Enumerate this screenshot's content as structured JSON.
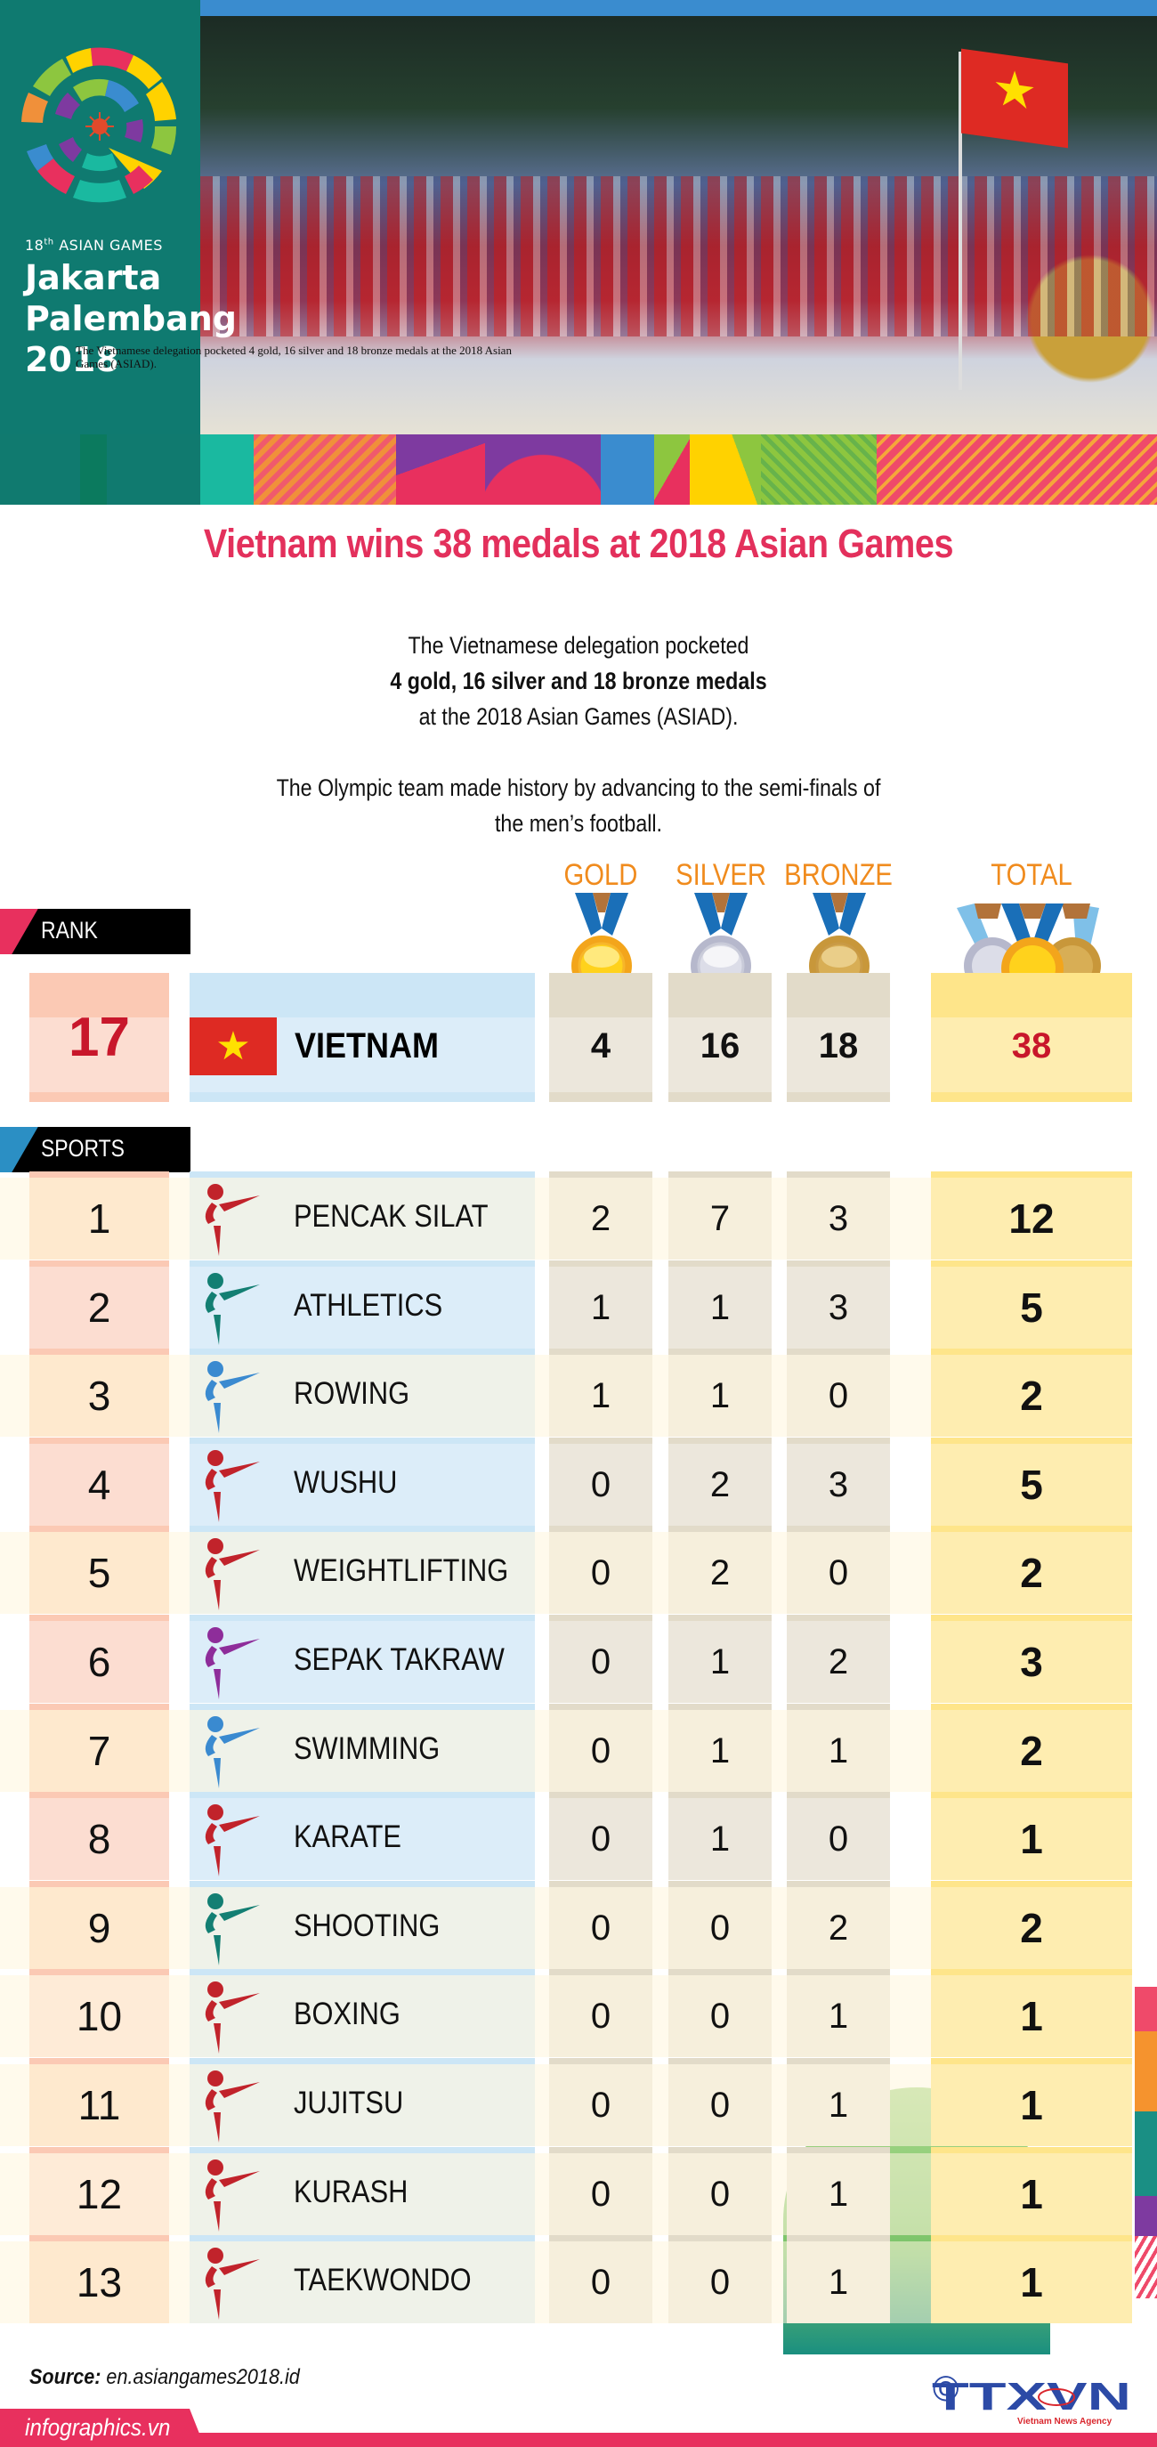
{
  "banner": {
    "event_line1": "18th ASIAN GAMES",
    "event_line1_main": "18",
    "event_line1_sup": "th",
    "event_line1_rest": " ASIAN GAMES",
    "city1": "Jakarta",
    "city2": "Palembang",
    "year": "2018",
    "photo_caption": "The Vietnamese delegation pocketed 4 gold, 16 silver and 18 bronze medals at the 2018 Asian Games (ASIAD).",
    "photo_description": "Vietnamese delegation marching with national flags at the opening ceremony"
  },
  "headline": "Vietnam wins 38 medals at 2018 Asian Games",
  "intro": {
    "line1": "The Vietnamese delegation pocketed",
    "line2_bold": "4 gold, 16 silver and 18 bronze medals",
    "line3": "at the 2018 Asian Games (ASIAD).",
    "para2_line1": "The Olympic team made history by advancing to the semi-finals of",
    "para2_line2": "the men’s football."
  },
  "columns": {
    "gold": "GOLD",
    "silver": "SILVER",
    "bronze": "BRONZE",
    "total": "TOTAL"
  },
  "rank_section": {
    "label": "RANK",
    "rank": "17",
    "country": "VIETNAM",
    "gold": "4",
    "silver": "16",
    "bronze": "18",
    "total": "38"
  },
  "sports_section": {
    "label": "SPORTS"
  },
  "sports": [
    {
      "rank": "1",
      "name": "PENCAK SILAT",
      "icon": "pencak-silat-icon",
      "gold": "2",
      "silver": "7",
      "bronze": "3",
      "total": "12"
    },
    {
      "rank": "2",
      "name": "ATHLETICS",
      "icon": "athletics-icon",
      "gold": "1",
      "silver": "1",
      "bronze": "3",
      "total": "5"
    },
    {
      "rank": "3",
      "name": "ROWING",
      "icon": "rowing-icon",
      "gold": "1",
      "silver": "1",
      "bronze": "0",
      "total": "2"
    },
    {
      "rank": "4",
      "name": "WUSHU",
      "icon": "wushu-icon",
      "gold": "0",
      "silver": "2",
      "bronze": "3",
      "total": "5"
    },
    {
      "rank": "5",
      "name": "WEIGHTLIFTING",
      "icon": "weightlifting-icon",
      "gold": "0",
      "silver": "2",
      "bronze": "0",
      "total": "2"
    },
    {
      "rank": "6",
      "name": "SEPAK TAKRAW",
      "icon": "sepak-takraw-icon",
      "gold": "0",
      "silver": "1",
      "bronze": "2",
      "total": "3"
    },
    {
      "rank": "7",
      "name": "SWIMMING",
      "icon": "swimming-icon",
      "gold": "0",
      "silver": "1",
      "bronze": "1",
      "total": "2"
    },
    {
      "rank": "8",
      "name": "KARATE",
      "icon": "karate-icon",
      "gold": "0",
      "silver": "1",
      "bronze": "0",
      "total": "1"
    },
    {
      "rank": "9",
      "name": "SHOOTING",
      "icon": "shooting-icon",
      "gold": "0",
      "silver": "0",
      "bronze": "2",
      "total": "2"
    },
    {
      "rank": "10",
      "name": "BOXING",
      "icon": "boxing-icon",
      "gold": "0",
      "silver": "0",
      "bronze": "1",
      "total": "1"
    },
    {
      "rank": "11",
      "name": "JUJITSU",
      "icon": "jujitsu-icon",
      "gold": "0",
      "silver": "0",
      "bronze": "1",
      "total": "1"
    },
    {
      "rank": "12",
      "name": "KURASH",
      "icon": "kurash-icon",
      "gold": "0",
      "silver": "0",
      "bronze": "1",
      "total": "1"
    },
    {
      "rank": "13",
      "name": "TAEKWONDO",
      "icon": "taekwondo-icon",
      "gold": "0",
      "silver": "0",
      "bronze": "1",
      "total": "1"
    }
  ],
  "footer": {
    "source_label": "Source:",
    "source_value": " en.asiangames2018.id",
    "site": "infographics.vn",
    "copyright_symbol": "©",
    "agency_logo": "TTXVN",
    "agency_name": "Vietnam News Agency"
  },
  "colors": {
    "headline": "#e3305c",
    "column_header": "#f08b1d",
    "rank_red": "#c8172b",
    "rank_tag_wedge": "#e8305e",
    "sports_tag_wedge": "#2b8fc4",
    "footer_pink": "#e8305e",
    "banner_teal": "#0f7a70",
    "rank_cell_odd": "#fbd8bf",
    "rank_cell_even": "#fcddd1",
    "name_cell": "#dcedf9",
    "medal_cell": "#ece7dc",
    "total_cell": "#fde9a7"
  },
  "chart_data": {
    "type": "table",
    "title": "Vietnam wins 38 medals at 2018 Asian Games",
    "summary": {
      "rank": 17,
      "country": "VIETNAM",
      "gold": 4,
      "silver": 16,
      "bronze": 18,
      "total": 38
    },
    "columns": [
      "Rank",
      "Sport",
      "Gold",
      "Silver",
      "Bronze",
      "Total"
    ],
    "rows": [
      [
        1,
        "PENCAK SILAT",
        2,
        7,
        3,
        12
      ],
      [
        2,
        "ATHLETICS",
        1,
        1,
        3,
        5
      ],
      [
        3,
        "ROWING",
        1,
        1,
        0,
        2
      ],
      [
        4,
        "WUSHU",
        0,
        2,
        3,
        5
      ],
      [
        5,
        "WEIGHTLIFTING",
        0,
        2,
        0,
        2
      ],
      [
        6,
        "SEPAK TAKRAW",
        0,
        1,
        2,
        3
      ],
      [
        7,
        "SWIMMING",
        0,
        1,
        1,
        2
      ],
      [
        8,
        "KARATE",
        0,
        1,
        0,
        1
      ],
      [
        9,
        "SHOOTING",
        0,
        0,
        2,
        2
      ],
      [
        10,
        "BOXING",
        0,
        0,
        1,
        1
      ],
      [
        11,
        "JUJITSU",
        0,
        0,
        1,
        1
      ],
      [
        12,
        "KURASH",
        0,
        0,
        1,
        1
      ],
      [
        13,
        "TAEKWONDO",
        0,
        0,
        1,
        1
      ]
    ],
    "categories": [
      "PENCAK SILAT",
      "ATHLETICS",
      "ROWING",
      "WUSHU",
      "WEIGHTLIFTING",
      "SEPAK TAKRAW",
      "SWIMMING",
      "KARATE",
      "SHOOTING",
      "BOXING",
      "JUJITSU",
      "KURASH",
      "TAEKWONDO"
    ],
    "series": [
      {
        "name": "GOLD",
        "values": [
          2,
          1,
          1,
          0,
          0,
          0,
          0,
          0,
          0,
          0,
          0,
          0,
          0
        ]
      },
      {
        "name": "SILVER",
        "values": [
          7,
          1,
          1,
          2,
          2,
          1,
          1,
          1,
          0,
          0,
          0,
          0,
          0
        ]
      },
      {
        "name": "BRONZE",
        "values": [
          3,
          3,
          0,
          3,
          0,
          2,
          1,
          0,
          2,
          1,
          1,
          1,
          1
        ]
      },
      {
        "name": "TOTAL",
        "values": [
          12,
          5,
          2,
          5,
          2,
          3,
          2,
          1,
          2,
          1,
          1,
          1,
          1
        ]
      }
    ],
    "source": "en.asiangames2018.id"
  }
}
